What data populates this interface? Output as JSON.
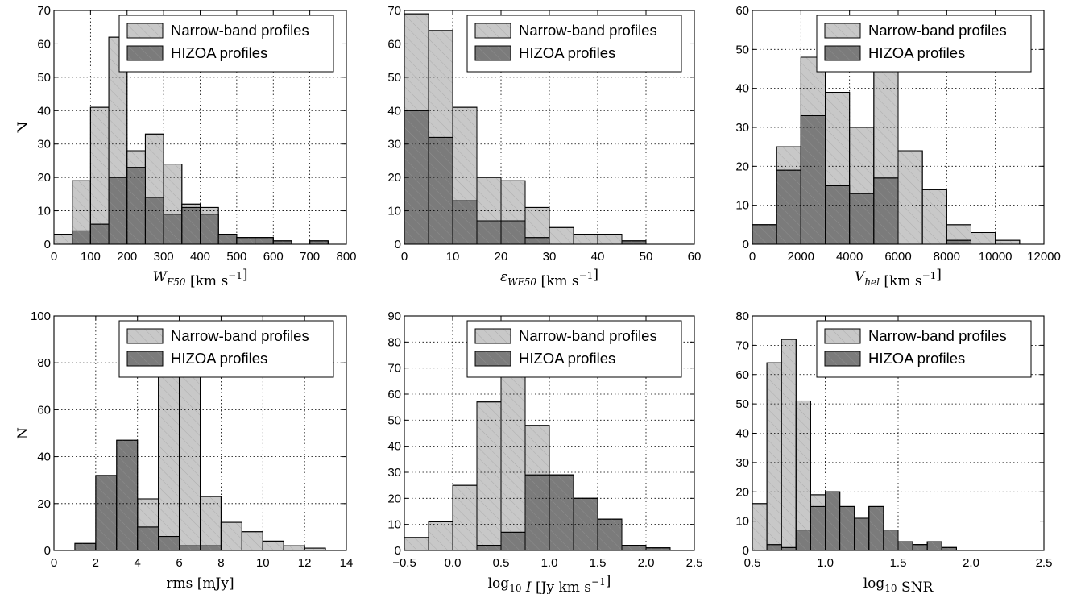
{
  "colors": {
    "narrow": "#c8c8c8",
    "hizoa": "#7b7b7b",
    "hatch": "#9a9a9a"
  },
  "legend": {
    "narrow_label": "Narrow-band profiles",
    "hizoa_label": "HIZOA profiles"
  },
  "chart_data": [
    {
      "type": "bar",
      "xlabel_main": "W",
      "xlabel_sub": "F50",
      "xlabel_unit": " [km s",
      "xlabel_exp": "−1",
      "xlabel_tail": "]",
      "ylabel": "N",
      "xlim": [
        0,
        800
      ],
      "ylim": [
        0,
        70
      ],
      "xticks": [
        "0",
        "100",
        "200",
        "300",
        "400",
        "500",
        "600",
        "700",
        "800"
      ],
      "yticks": [
        "0",
        "10",
        "20",
        "30",
        "40",
        "50",
        "60",
        "70"
      ],
      "bin_edges": [
        0,
        50,
        100,
        150,
        200,
        250,
        300,
        350,
        400,
        450,
        500,
        550,
        600,
        650,
        700,
        750
      ],
      "series": [
        {
          "name": "Narrow-band profiles",
          "values": [
            3,
            19,
            41,
            62,
            28,
            33,
            24,
            12,
            11,
            3,
            2,
            2,
            1,
            0,
            1
          ]
        },
        {
          "name": "HIZOA profiles",
          "values": [
            0,
            4,
            6,
            20,
            23,
            14,
            9,
            11,
            9,
            3,
            2,
            2,
            1,
            0,
            1
          ]
        }
      ],
      "legend_position": "top-right",
      "grid": true
    },
    {
      "type": "bar",
      "xlabel_main": "ε",
      "xlabel_sub": "WF50",
      "xlabel_unit": " [km s",
      "xlabel_exp": "−1",
      "xlabel_tail": "]",
      "ylabel": "",
      "xlim": [
        0,
        60
      ],
      "ylim": [
        0,
        70
      ],
      "xticks": [
        "0",
        "10",
        "20",
        "30",
        "40",
        "50",
        "60"
      ],
      "yticks": [
        "0",
        "10",
        "20",
        "30",
        "40",
        "50",
        "60",
        "70"
      ],
      "bin_edges": [
        0,
        5,
        10,
        15,
        20,
        25,
        30,
        35,
        40,
        45,
        50
      ],
      "series": [
        {
          "name": "Narrow-band profiles",
          "values": [
            69,
            64,
            41,
            20,
            19,
            11,
            5,
            3,
            3,
            1
          ]
        },
        {
          "name": "HIZOA profiles",
          "values": [
            40,
            32,
            13,
            7,
            7,
            2,
            0,
            0,
            0,
            1
          ]
        }
      ],
      "legend_position": "top-right",
      "grid": true
    },
    {
      "type": "bar",
      "xlabel_main": "V",
      "xlabel_sub": "hel",
      "xlabel_unit": " [km s",
      "xlabel_exp": "−1",
      "xlabel_tail": "]",
      "ylabel": "",
      "xlim": [
        0,
        12000
      ],
      "ylim": [
        0,
        60
      ],
      "xticks": [
        "0",
        "2000",
        "4000",
        "6000",
        "8000",
        "10000",
        "12000"
      ],
      "yticks": [
        "0",
        "10",
        "20",
        "30",
        "40",
        "50",
        "60"
      ],
      "bin_edges": [
        0,
        1000,
        2000,
        3000,
        4000,
        5000,
        6000,
        7000,
        8000,
        9000,
        10000,
        11000
      ],
      "series": [
        {
          "name": "Narrow-band profiles",
          "values": [
            5,
            25,
            48,
            39,
            30,
            45,
            24,
            14,
            5,
            3,
            1
          ]
        },
        {
          "name": "HIZOA profiles",
          "values": [
            5,
            19,
            33,
            15,
            13,
            17,
            0,
            0,
            1,
            0,
            0
          ]
        }
      ],
      "legend_position": "top-right",
      "grid": true
    },
    {
      "type": "bar",
      "xlabel_main": "rms [mJy]",
      "xlabel_sub": "",
      "xlabel_unit": "",
      "xlabel_exp": "",
      "xlabel_tail": "",
      "ylabel": "N",
      "xlim": [
        0,
        14
      ],
      "ylim": [
        0,
        100
      ],
      "xticks": [
        "0",
        "2",
        "4",
        "6",
        "8",
        "10",
        "12",
        "14"
      ],
      "yticks": [
        "0",
        "20",
        "40",
        "60",
        "80",
        "100"
      ],
      "bin_edges": [
        1,
        2,
        3,
        4,
        5,
        6,
        7,
        8,
        9,
        10,
        11,
        12,
        13
      ],
      "series": [
        {
          "name": "Narrow-band profiles",
          "values": [
            0,
            0,
            0,
            22,
            75,
            80,
            23,
            12,
            8,
            4,
            2,
            1
          ]
        },
        {
          "name": "HIZOA profiles",
          "values": [
            3,
            32,
            47,
            10,
            6,
            2,
            2,
            0,
            0,
            0,
            0,
            0
          ]
        }
      ],
      "legend_position": "top-right",
      "grid": true
    },
    {
      "type": "bar",
      "xlabel_main": "log",
      "xlabel_sub": "10",
      "xlabel_unit": " I [Jy km s",
      "xlabel_exp": "−1",
      "xlabel_tail": "]",
      "ylabel": "",
      "xlim": [
        -0.5,
        2.5
      ],
      "ylim": [
        0,
        90
      ],
      "xticks": [
        "−0.5",
        "0.0",
        "0.5",
        "1.0",
        "1.5",
        "2.0",
        "2.5"
      ],
      "yticks": [
        "0",
        "10",
        "20",
        "30",
        "40",
        "50",
        "60",
        "70",
        "80",
        "90"
      ],
      "bin_edges": [
        -0.5,
        -0.25,
        0.0,
        0.25,
        0.5,
        0.75,
        1.0,
        1.25,
        1.5,
        1.75,
        2.0,
        2.25
      ],
      "series": [
        {
          "name": "Narrow-band profiles",
          "values": [
            5,
            11,
            25,
            57,
            68,
            48,
            29,
            20,
            12,
            2,
            1
          ]
        },
        {
          "name": "HIZOA profiles",
          "values": [
            0,
            0,
            0,
            2,
            7,
            29,
            29,
            20,
            12,
            2,
            1
          ]
        }
      ],
      "legend_position": "top-right",
      "grid": true
    },
    {
      "type": "bar",
      "xlabel_main": "log",
      "xlabel_sub": "10",
      "xlabel_unit": " SNR",
      "xlabel_exp": "",
      "xlabel_tail": "",
      "ylabel": "",
      "xlim": [
        0.5,
        2.5
      ],
      "ylim": [
        0,
        80
      ],
      "xticks": [
        "0.5",
        "1.0",
        "1.5",
        "2.0",
        "2.5"
      ],
      "yticks": [
        "0",
        "10",
        "20",
        "30",
        "40",
        "50",
        "60",
        "70",
        "80"
      ],
      "bin_edges": [
        0.5,
        0.6,
        0.7,
        0.8,
        0.9,
        1.0,
        1.1,
        1.2,
        1.3,
        1.4,
        1.5,
        1.6,
        1.7,
        1.8,
        1.9,
        2.0,
        2.1,
        2.2
      ],
      "series": [
        {
          "name": "Narrow-band profiles",
          "values": [
            16,
            64,
            72,
            51,
            19,
            20,
            15,
            11,
            15,
            7,
            3,
            2,
            3,
            1,
            0,
            0,
            0
          ]
        },
        {
          "name": "HIZOA profiles",
          "values": [
            0,
            2,
            1,
            7,
            15,
            20,
            15,
            11,
            15,
            7,
            3,
            2,
            3,
            1,
            0,
            0,
            0
          ]
        }
      ],
      "legend_position": "top-right",
      "grid": true
    }
  ]
}
